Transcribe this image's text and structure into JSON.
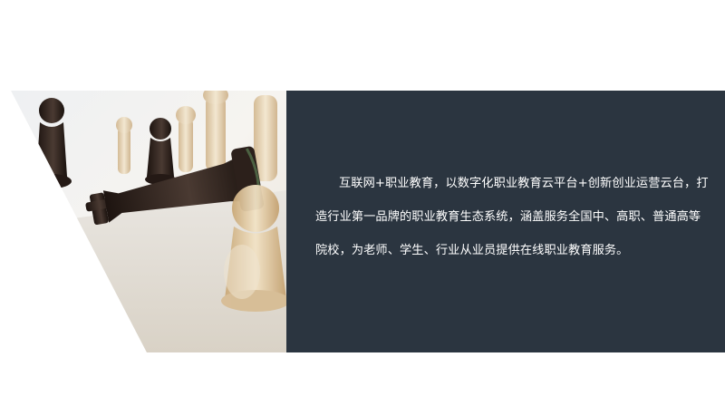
{
  "about": {
    "image_alt": "chess pieces",
    "intro_text": "互联网+职业教育，以数字化职业教育云平台+创新创业运营云台，打造行业第一品牌的职业教育生态系统，涵盖服务全国中、高职、普通高等院校，为老师、学生、行业从业员提供在线职业教育服务。"
  },
  "colors": {
    "panel_bg": "#2b3540",
    "text": "#ffffff",
    "page_bg": "#ffffff"
  }
}
